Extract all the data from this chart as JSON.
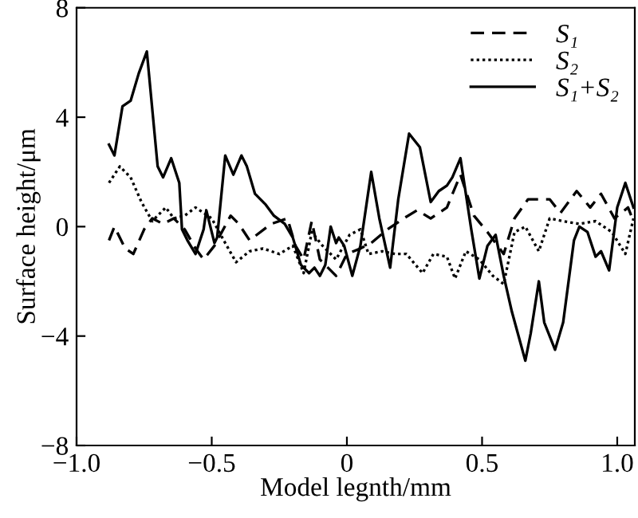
{
  "chart_data": {
    "type": "line",
    "xlabel": "Model legnth/mm",
    "ylabel": "Surface height/μm",
    "xlim": [
      -1.0,
      1.065
    ],
    "ylim": [
      -8,
      8
    ],
    "xticks": [
      {
        "value": -1.0,
        "label": "−1.0"
      },
      {
        "value": -0.5,
        "label": "−0.5"
      },
      0,
      {
        "value": 0.5,
        "label": "0.5"
      },
      {
        "value": 1.0,
        "label": "1.0"
      }
    ],
    "yticks": [
      {
        "value": -8,
        "label": "−8"
      },
      {
        "value": -4,
        "label": "−4"
      },
      0,
      4,
      8
    ],
    "grid": false,
    "legend": "top right",
    "series": [
      {
        "name": "S₁",
        "color": "#000000",
        "line_style": "dashed",
        "x": [
          -0.88,
          -0.86,
          -0.82,
          -0.79,
          -0.75,
          -0.72,
          -0.68,
          -0.64,
          -0.6,
          -0.56,
          -0.53,
          -0.49,
          -0.43,
          -0.4,
          -0.36,
          -0.28,
          -0.22,
          -0.19,
          -0.16,
          -0.13,
          -0.1,
          -0.04,
          0.0,
          0.05,
          0.09,
          0.15,
          0.21,
          0.26,
          0.31,
          0.37,
          0.42,
          0.47,
          0.52,
          0.58,
          0.62,
          0.67,
          0.71,
          0.75,
          0.79,
          0.85,
          0.9,
          0.94,
          0.99,
          1.04,
          1.06
        ],
        "values": [
          -0.5,
          0.0,
          -0.8,
          -1.0,
          -0.1,
          0.3,
          0.1,
          0.3,
          -0.1,
          -0.8,
          -1.2,
          -0.7,
          0.4,
          0.1,
          -0.5,
          0.1,
          0.3,
          -0.7,
          -1.2,
          0.2,
          -1.2,
          -1.8,
          -1.0,
          -0.8,
          -0.6,
          -0.1,
          0.3,
          0.6,
          0.3,
          0.7,
          1.9,
          0.4,
          -0.2,
          -1.0,
          0.3,
          1.0,
          1.0,
          1.0,
          0.5,
          1.3,
          0.7,
          1.2,
          0.3,
          0.7,
          0.2
        ]
      },
      {
        "name": "S₂",
        "color": "#000000",
        "line_style": "dotted",
        "x": [
          -0.88,
          -0.84,
          -0.8,
          -0.76,
          -0.72,
          -0.67,
          -0.64,
          -0.6,
          -0.56,
          -0.5,
          -0.45,
          -0.41,
          -0.36,
          -0.31,
          -0.25,
          -0.2,
          -0.16,
          -0.13,
          -0.09,
          -0.04,
          0.01,
          0.05,
          0.08,
          0.13,
          0.18,
          0.22,
          0.28,
          0.32,
          0.37,
          0.4,
          0.44,
          0.49,
          0.54,
          0.58,
          0.62,
          0.66,
          0.71,
          0.75,
          0.8,
          0.86,
          0.92,
          0.98,
          1.03,
          1.06
        ],
        "values": [
          1.6,
          2.2,
          1.8,
          0.9,
          0.2,
          0.7,
          0.3,
          0.4,
          0.7,
          0.3,
          -0.6,
          -1.3,
          -0.9,
          -0.8,
          -1.0,
          -0.7,
          -1.7,
          -0.2,
          -0.7,
          -1.2,
          -0.3,
          -0.1,
          -1.0,
          -0.9,
          -1.0,
          -1.0,
          -1.7,
          -1.0,
          -1.1,
          -1.9,
          -0.9,
          -1.2,
          -1.8,
          -2.1,
          -0.2,
          0.0,
          -0.9,
          0.3,
          0.2,
          0.1,
          0.2,
          -0.2,
          -1.0,
          0.3
        ]
      },
      {
        "name": "S₁+S₂",
        "color": "#000000",
        "line_style": "solid",
        "x": [
          -0.88,
          -0.86,
          -0.83,
          -0.8,
          -0.77,
          -0.74,
          -0.7,
          -0.68,
          -0.65,
          -0.62,
          -0.61,
          -0.59,
          -0.56,
          -0.53,
          -0.52,
          -0.49,
          -0.48,
          -0.45,
          -0.42,
          -0.39,
          -0.37,
          -0.34,
          -0.3,
          -0.27,
          -0.23,
          -0.2,
          -0.17,
          -0.14,
          -0.12,
          -0.1,
          -0.08,
          -0.06,
          -0.04,
          -0.03,
          -0.01,
          0.02,
          0.05,
          0.09,
          0.12,
          0.16,
          0.19,
          0.23,
          0.27,
          0.31,
          0.34,
          0.37,
          0.39,
          0.42,
          0.46,
          0.49,
          0.52,
          0.55,
          0.58,
          0.61,
          0.66,
          0.68,
          0.71,
          0.73,
          0.77,
          0.8,
          0.84,
          0.86,
          0.89,
          0.92,
          0.94,
          0.97,
          1.0,
          1.03,
          1.06
        ],
        "values": [
          3.0,
          2.6,
          4.4,
          4.6,
          5.6,
          6.4,
          2.2,
          1.8,
          2.5,
          1.6,
          -0.1,
          -0.5,
          -1.0,
          -0.1,
          0.6,
          -0.6,
          -0.4,
          2.6,
          1.9,
          2.6,
          2.2,
          1.2,
          0.8,
          0.4,
          0.1,
          -0.4,
          -1.4,
          -1.7,
          -1.5,
          -1.8,
          -1.4,
          0.0,
          -0.6,
          -0.4,
          -0.7,
          -1.8,
          -0.7,
          2.0,
          0.3,
          -1.5,
          1.0,
          3.4,
          2.9,
          0.9,
          1.3,
          1.5,
          1.8,
          2.5,
          -0.1,
          -1.9,
          -0.7,
          -0.3,
          -1.8,
          -3.1,
          -4.9,
          -3.9,
          -2.0,
          -3.5,
          -4.5,
          -3.5,
          -0.5,
          0.0,
          -0.2,
          -1.1,
          -0.9,
          -1.6,
          0.7,
          1.6,
          0.7
        ]
      }
    ]
  }
}
